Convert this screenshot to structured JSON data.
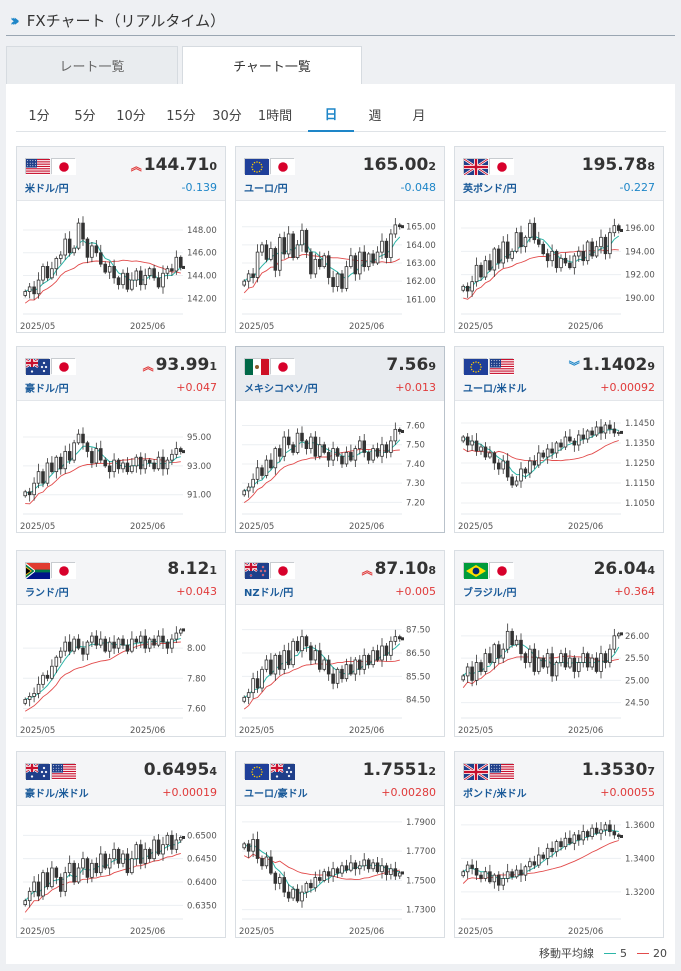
{
  "header": {
    "title": "FXチャート（リアルタイム）"
  },
  "tabs": {
    "rate": "レート一覧",
    "chart": "チャート一覧"
  },
  "periods": [
    "1分",
    "5分",
    "10分",
    "15分",
    "30分",
    "1時間",
    "日",
    "週",
    "月"
  ],
  "active_period": "日",
  "legend": {
    "label": "移動平均線",
    "ma5": "5",
    "ma20": "20",
    "ma5_color": "#2db6a8",
    "ma20_color": "#e24b4b"
  },
  "colors": {
    "up": "#e03a3a",
    "down": "#1e86c8",
    "accent": "#1e86c8"
  },
  "cards": [
    {
      "name": "usdjpy",
      "flags": [
        "us",
        "jp"
      ],
      "pair": "米ドル/円",
      "price_main": "144.71",
      "price_last": "0",
      "arrow": "up",
      "change": "-0.139",
      "change_sign": "neg",
      "axis_ticks": [
        "148.00",
        "146.00",
        "144.00",
        "142.00"
      ],
      "x_labels": [
        "2025/05",
        "2025/06"
      ],
      "chart_data": {
        "type": "candlestick",
        "ylim": [
          140.8,
          149.4
        ],
        "ticks": [
          148,
          146,
          144,
          142
        ],
        "closes": [
          142.6,
          143.0,
          142.4,
          143.6,
          144.8,
          143.8,
          144.6,
          145.5,
          145.8,
          147.2,
          146.0,
          146.4,
          148.6,
          147.2,
          145.6,
          146.6,
          146.0,
          145.0,
          144.3,
          144.8,
          143.8,
          143.2,
          144.2,
          142.8,
          143.6,
          144.4,
          143.2,
          144.0,
          144.6,
          143.8,
          143.0,
          144.2,
          144.6,
          144.4,
          145.6,
          144.71
        ]
      }
    },
    {
      "name": "eurjpy",
      "flags": [
        "eu",
        "jp"
      ],
      "pair": "ユーロ/円",
      "price_main": "165.00",
      "price_last": "2",
      "arrow": "",
      "change": "-0.048",
      "change_sign": "neg",
      "axis_ticks": [
        "165.00",
        "164.00",
        "163.00",
        "162.00",
        "161.00"
      ],
      "x_labels": [
        "2025/05",
        "2025/06"
      ],
      "chart_data": {
        "type": "candlestick",
        "ylim": [
          160.3,
          165.7
        ],
        "ticks": [
          165,
          164,
          163,
          162,
          161
        ],
        "closes": [
          162.0,
          162.4,
          162.2,
          163.6,
          164.0,
          163.2,
          163.8,
          162.6,
          164.4,
          163.5,
          164.6,
          163.3,
          164.0,
          164.8,
          163.6,
          162.4,
          163.2,
          162.8,
          163.4,
          162.2,
          161.7,
          162.4,
          161.6,
          162.8,
          163.4,
          162.4,
          163.6,
          162.8,
          163.5,
          163.0,
          163.6,
          164.2,
          163.3,
          164.6,
          165.1,
          165.002
        ]
      }
    },
    {
      "name": "gbpjpy",
      "flags": [
        "uk",
        "jp"
      ],
      "pair": "英ポンド/円",
      "price_main": "195.78",
      "price_last": "8",
      "arrow": "",
      "change": "-0.227",
      "change_sign": "neg",
      "axis_ticks": [
        "196.00",
        "194.00",
        "192.00",
        "190.00"
      ],
      "x_labels": [
        "2025/05",
        "2025/06"
      ],
      "chart_data": {
        "type": "candlestick",
        "ylim": [
          188.8,
          197.2
        ],
        "ticks": [
          196,
          194,
          192,
          190
        ],
        "closes": [
          191.0,
          190.6,
          191.4,
          192.8,
          191.8,
          193.2,
          192.4,
          194.2,
          193.0,
          194.8,
          193.4,
          194.0,
          195.6,
          194.4,
          195.2,
          196.4,
          195.0,
          194.6,
          193.8,
          193.2,
          194.0,
          192.6,
          193.4,
          193.0,
          192.6,
          193.6,
          194.0,
          193.2,
          194.8,
          193.6,
          194.4,
          195.2,
          193.8,
          195.6,
          196.2,
          195.788
        ]
      }
    },
    {
      "name": "audjpy",
      "flags": [
        "au",
        "jp"
      ],
      "pair": "豪ドル/円",
      "price_main": "93.99",
      "price_last": "1",
      "arrow": "up",
      "change": "+0.047",
      "change_sign": "pos",
      "axis_ticks": [
        "95.00",
        "93.00",
        "91.00"
      ],
      "x_labels": [
        "2025/05",
        "2025/06"
      ],
      "chart_data": {
        "type": "candlestick",
        "ylim": [
          89.8,
          96.6
        ],
        "ticks": [
          95,
          93,
          91
        ],
        "closes": [
          91.2,
          91.0,
          91.8,
          92.6,
          91.8,
          93.2,
          92.6,
          93.6,
          92.8,
          94.0,
          93.4,
          94.6,
          95.2,
          94.6,
          94.0,
          93.2,
          94.2,
          93.4,
          93.0,
          92.6,
          93.4,
          92.8,
          93.2,
          92.6,
          93.0,
          93.6,
          92.8,
          93.4,
          93.2,
          92.8,
          93.6,
          92.8,
          93.4,
          93.8,
          94.2,
          93.991
        ]
      }
    },
    {
      "name": "mxnjpy",
      "flags": [
        "mx",
        "jp"
      ],
      "pair": "メキシコペソ/円",
      "price_main": "7.56",
      "price_last": "9",
      "arrow": "",
      "change": "+0.013",
      "change_sign": "pos",
      "highlight": true,
      "axis_ticks": [
        "7.60",
        "7.50",
        "7.40",
        "7.30",
        "7.20"
      ],
      "x_labels": [
        "2025/05",
        "2025/06"
      ],
      "chart_data": {
        "type": "candlestick",
        "ylim": [
          7.15,
          7.66
        ],
        "ticks": [
          7.6,
          7.5,
          7.4,
          7.3,
          7.2
        ],
        "closes": [
          7.26,
          7.28,
          7.32,
          7.38,
          7.34,
          7.42,
          7.38,
          7.48,
          7.44,
          7.54,
          7.5,
          7.46,
          7.56,
          7.52,
          7.48,
          7.54,
          7.44,
          7.5,
          7.46,
          7.42,
          7.48,
          7.44,
          7.4,
          7.46,
          7.42,
          7.48,
          7.52,
          7.46,
          7.42,
          7.48,
          7.44,
          7.5,
          7.46,
          7.52,
          7.58,
          7.569
        ]
      }
    },
    {
      "name": "eurusd",
      "flags": [
        "eu",
        "us"
      ],
      "pair": "ユーロ/米ドル",
      "price_main": "1.1402",
      "price_last": "9",
      "arrow": "down",
      "change": "+0.00092",
      "change_sign": "pos",
      "axis_ticks": [
        "1.1450",
        "1.1350",
        "1.1250",
        "1.1150",
        "1.1050"
      ],
      "x_labels": [
        "2025/05",
        "2025/06"
      ],
      "chart_data": {
        "type": "candlestick",
        "ylim": [
          1.1005,
          1.1495
        ],
        "ticks": [
          1.145,
          1.135,
          1.125,
          1.115,
          1.105
        ],
        "closes": [
          1.138,
          1.134,
          1.136,
          1.131,
          1.133,
          1.128,
          1.13,
          1.125,
          1.122,
          1.126,
          1.118,
          1.114,
          1.116,
          1.122,
          1.12,
          1.126,
          1.124,
          1.13,
          1.128,
          1.132,
          1.13,
          1.135,
          1.133,
          1.138,
          1.136,
          1.134,
          1.139,
          1.137,
          1.141,
          1.139,
          1.143,
          1.14,
          1.144,
          1.142,
          1.14,
          1.14029
        ]
      }
    },
    {
      "name": "zarjpy",
      "flags": [
        "za",
        "jp"
      ],
      "pair": "ランド/円",
      "price_main": "8.12",
      "price_last": "1",
      "arrow": "",
      "change": "+0.043",
      "change_sign": "pos",
      "axis_ticks": [
        "8.00",
        "7.80",
        "7.60"
      ],
      "x_labels": [
        "2025/05",
        "2025/06"
      ],
      "chart_data": {
        "type": "candlestick",
        "ylim": [
          7.55,
          8.2
        ],
        "ticks": [
          8.0,
          7.8,
          7.6
        ],
        "closes": [
          7.66,
          7.68,
          7.7,
          7.76,
          7.82,
          7.8,
          7.88,
          7.94,
          7.98,
          8.04,
          7.98,
          8.06,
          8.0,
          7.96,
          8.04,
          8.08,
          8.02,
          8.06,
          7.98,
          8.04,
          8.0,
          8.06,
          8.02,
          7.98,
          8.06,
          8.04,
          8.08,
          8.0,
          8.06,
          8.02,
          8.08,
          8.04,
          8.0,
          8.06,
          8.1,
          8.121
        ]
      }
    },
    {
      "name": "nzdjpy",
      "flags": [
        "nz",
        "jp"
      ],
      "pair": "NZドル/円",
      "price_main": "87.10",
      "price_last": "8",
      "arrow": "up",
      "change": "+0.005",
      "change_sign": "pos",
      "axis_ticks": [
        "87.50",
        "86.50",
        "85.50",
        "84.50"
      ],
      "x_labels": [
        "2025/05",
        "2025/06"
      ],
      "chart_data": {
        "type": "candlestick",
        "ylim": [
          83.8,
          88.0
        ],
        "ticks": [
          87.5,
          86.5,
          85.5,
          84.5
        ],
        "closes": [
          84.6,
          84.8,
          85.4,
          85.0,
          85.8,
          86.2,
          85.6,
          86.4,
          85.8,
          86.6,
          86.0,
          87.0,
          86.6,
          87.2,
          86.8,
          86.2,
          86.6,
          85.8,
          86.2,
          85.6,
          85.2,
          85.8,
          85.4,
          86.0,
          85.6,
          86.2,
          85.8,
          86.4,
          86.0,
          86.6,
          86.2,
          86.8,
          86.4,
          87.0,
          87.2,
          87.108
        ]
      }
    },
    {
      "name": "brljpy",
      "flags": [
        "br",
        "jp"
      ],
      "pair": "ブラジル/円",
      "price_main": "26.04",
      "price_last": "4",
      "arrow": "",
      "change": "+0.364",
      "change_sign": "pos",
      "axis_ticks": [
        "26.00",
        "25.50",
        "25.00",
        "24.50"
      ],
      "x_labels": [
        "2025/05",
        "2025/06"
      ],
      "chart_data": {
        "type": "candlestick",
        "ylim": [
          24.2,
          26.4
        ],
        "ticks": [
          26.0,
          25.5,
          25.0,
          24.5
        ],
        "closes": [
          25.1,
          25.3,
          25.0,
          25.4,
          25.2,
          25.6,
          25.4,
          25.8,
          25.5,
          25.7,
          26.1,
          25.8,
          25.9,
          25.6,
          25.4,
          25.7,
          25.2,
          25.5,
          25.3,
          25.6,
          25.1,
          25.4,
          25.6,
          25.3,
          25.5,
          25.2,
          25.4,
          25.6,
          25.3,
          25.5,
          25.2,
          25.6,
          25.4,
          25.7,
          26.0,
          26.044
        ]
      }
    },
    {
      "name": "audusd",
      "flags": [
        "au",
        "us"
      ],
      "pair": "豪ドル/米ドル",
      "price_main": "0.6495",
      "price_last": "4",
      "arrow": "",
      "change": "+0.00019",
      "change_sign": "pos",
      "axis_ticks": [
        "0.6500",
        "0.6450",
        "0.6400",
        "0.6350"
      ],
      "x_labels": [
        "2025/05",
        "2025/06"
      ],
      "chart_data": {
        "type": "candlestick",
        "ylim": [
          0.6325,
          0.6535
        ],
        "ticks": [
          0.65,
          0.645,
          0.64,
          0.635
        ],
        "closes": [
          0.636,
          0.638,
          0.64,
          0.637,
          0.642,
          0.639,
          0.643,
          0.641,
          0.638,
          0.642,
          0.644,
          0.64,
          0.643,
          0.645,
          0.641,
          0.644,
          0.642,
          0.646,
          0.643,
          0.645,
          0.647,
          0.644,
          0.646,
          0.642,
          0.645,
          0.648,
          0.644,
          0.647,
          0.645,
          0.649,
          0.646,
          0.648,
          0.65,
          0.647,
          0.649,
          0.64954
        ]
      }
    },
    {
      "name": "euraud",
      "flags": [
        "eu",
        "au"
      ],
      "pair": "ユーロ/豪ドル",
      "price_main": "1.7551",
      "price_last": "2",
      "arrow": "",
      "change": "+0.00280",
      "change_sign": "pos",
      "axis_ticks": [
        "1.7900",
        "1.7700",
        "1.7500",
        "1.7300"
      ],
      "x_labels": [
        "2025/05",
        "2025/06"
      ],
      "chart_data": {
        "type": "candlestick",
        "ylim": [
          1.725,
          1.792
        ],
        "ticks": [
          1.79,
          1.77,
          1.75,
          1.73
        ],
        "closes": [
          1.775,
          1.77,
          1.778,
          1.765,
          1.76,
          1.766,
          1.755,
          1.748,
          1.752,
          1.742,
          1.738,
          1.744,
          1.736,
          1.742,
          1.748,
          1.745,
          1.752,
          1.75,
          1.756,
          1.753,
          1.758,
          1.755,
          1.76,
          1.757,
          1.762,
          1.758,
          1.76,
          1.764,
          1.758,
          1.762,
          1.756,
          1.76,
          1.754,
          1.758,
          1.753,
          1.75512
        ]
      }
    },
    {
      "name": "gbpusd",
      "flags": [
        "uk",
        "us"
      ],
      "pair": "ポンド/米ドル",
      "price_main": "1.3530",
      "price_last": "7",
      "arrow": "",
      "change": "+0.00055",
      "change_sign": "pos",
      "axis_ticks": [
        "1.3600",
        "1.3400",
        "1.3200"
      ],
      "x_labels": [
        "2025/05",
        "2025/06"
      ],
      "chart_data": {
        "type": "candlestick",
        "ylim": [
          1.305,
          1.3635
        ],
        "ticks": [
          1.36,
          1.34,
          1.32
        ],
        "closes": [
          1.332,
          1.336,
          1.334,
          1.33,
          1.328,
          1.332,
          1.326,
          1.33,
          1.324,
          1.328,
          1.332,
          1.329,
          1.333,
          1.33,
          1.335,
          1.338,
          1.336,
          1.342,
          1.34,
          1.346,
          1.344,
          1.35,
          1.347,
          1.352,
          1.349,
          1.354,
          1.351,
          1.356,
          1.353,
          1.358,
          1.355,
          1.357,
          1.36,
          1.356,
          1.354,
          1.35307
        ]
      }
    }
  ]
}
